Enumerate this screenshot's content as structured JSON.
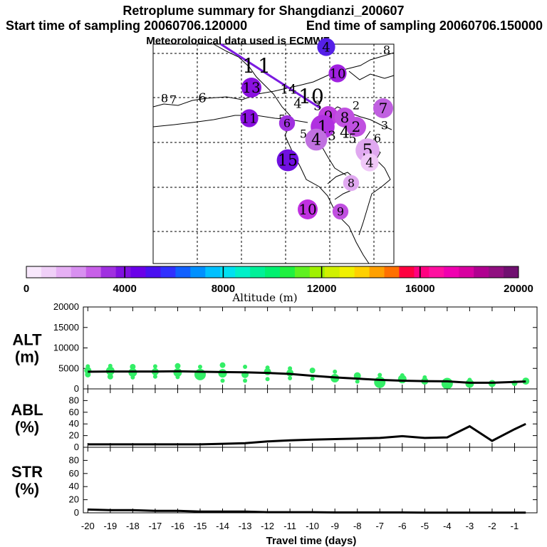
{
  "header": {
    "title": "Retroplume summary for Shangdianzi_200607",
    "start": "Start time of sampling 20060706.120000",
    "end": "End time of sampling 20060706.150000",
    "met": "Meteorological data used is ECMWF"
  },
  "map": {
    "labels": [
      {
        "t": "1",
        "x": 349,
        "y": 92,
        "s": 28,
        "dot": false
      },
      {
        "t": "1",
        "x": 371,
        "y": 92,
        "s": 28,
        "dot": false
      },
      {
        "t": "4",
        "x": 458,
        "y": 66,
        "s": 18,
        "dot": true,
        "c": "#5520e8"
      },
      {
        "t": "8",
        "x": 543,
        "y": 70,
        "s": 16,
        "dot": false
      },
      {
        "t": "10",
        "x": 474,
        "y": 103,
        "s": 18,
        "dot": true,
        "c": "#a020e0"
      },
      {
        "t": "13",
        "x": 353,
        "y": 123,
        "s": 20,
        "dot": true,
        "c": "#8a10e0"
      },
      {
        "t": "14",
        "x": 405,
        "y": 125,
        "s": 18,
        "dot": false
      },
      {
        "t": "10",
        "x": 437,
        "y": 135,
        "s": 28,
        "dot": false
      },
      {
        "t": "8",
        "x": 231,
        "y": 138,
        "s": 16,
        "dot": false
      },
      {
        "t": "7",
        "x": 243,
        "y": 140,
        "s": 16,
        "dot": false
      },
      {
        "t": "6",
        "x": 284,
        "y": 137,
        "s": 18,
        "dot": false
      },
      {
        "t": "4",
        "x": 418,
        "y": 145,
        "s": 18,
        "dot": false
      },
      {
        "t": "3",
        "x": 446,
        "y": 148,
        "s": 18,
        "dot": false
      },
      {
        "t": "2",
        "x": 500,
        "y": 148,
        "s": 16,
        "dot": false
      },
      {
        "t": "7",
        "x": 538,
        "y": 152,
        "s": 20,
        "dot": true,
        "c": "#c060e0"
      },
      {
        "t": "11",
        "x": 350,
        "y": 166,
        "s": 18,
        "dot": true,
        "c": "#8a10e0"
      },
      {
        "t": "5",
        "x": 396,
        "y": 167,
        "s": 16,
        "dot": false
      },
      {
        "t": "6",
        "x": 403,
        "y": 173,
        "s": 16,
        "dot": true,
        "c": "#a030e0"
      },
      {
        "t": "9",
        "x": 461,
        "y": 163,
        "s": 20,
        "dot": true,
        "c": "#c040e0"
      },
      {
        "t": "8",
        "x": 484,
        "y": 165,
        "s": 20,
        "dot": true,
        "c": "#c050e0"
      },
      {
        "t": "1",
        "x": 453,
        "y": 178,
        "s": 24,
        "dot": true,
        "c": "#b030e0"
      },
      {
        "t": "2",
        "x": 500,
        "y": 178,
        "s": 20,
        "dot": true,
        "c": "#c050e0"
      },
      {
        "t": "3",
        "x": 540,
        "y": 176,
        "s": 16,
        "dot": false
      },
      {
        "t": "5",
        "x": 426,
        "y": 188,
        "s": 16,
        "dot": false
      },
      {
        "t": "4",
        "x": 444,
        "y": 196,
        "s": 22,
        "dot": true,
        "c": "#c070e0"
      },
      {
        "t": "3",
        "x": 466,
        "y": 190,
        "s": 18,
        "dot": false
      },
      {
        "t": "4",
        "x": 484,
        "y": 186,
        "s": 22,
        "dot": false
      },
      {
        "t": "5",
        "x": 495,
        "y": 194,
        "s": 18,
        "dot": false
      },
      {
        "t": "6",
        "x": 530,
        "y": 194,
        "s": 16,
        "dot": false
      },
      {
        "t": "5",
        "x": 516,
        "y": 211,
        "s": 24,
        "dot": true,
        "c": "#e0a8f0"
      },
      {
        "t": "15",
        "x": 404,
        "y": 225,
        "s": 22,
        "dot": true,
        "c": "#7010e0"
      },
      {
        "t": "4",
        "x": 519,
        "y": 228,
        "s": 18,
        "dot": true,
        "c": "#f0c8f8"
      },
      {
        "t": "8",
        "x": 493,
        "y": 257,
        "s": 16,
        "dot": true,
        "c": "#e0a8f0"
      },
      {
        "t": "10",
        "x": 432,
        "y": 294,
        "s": 20,
        "dot": true,
        "c": "#c030e0"
      },
      {
        "t": "9",
        "x": 478,
        "y": 297,
        "s": 16,
        "dot": true,
        "c": "#c050e0"
      }
    ]
  },
  "colorbar": {
    "label": "Altitude (m)",
    "ticks": [
      "0",
      "4000",
      "8000",
      "12000",
      "16000",
      "20000"
    ],
    "colors": [
      "#f8e8fc",
      "#f0d0f8",
      "#e6b0f4",
      "#d890f0",
      "#c860e8",
      "#a030e0",
      "#8010e0",
      "#6a00e8",
      "#4a10f0",
      "#3030ff",
      "#1060ff",
      "#0090ff",
      "#00c0ff",
      "#00e0f0",
      "#00f0c8",
      "#00f098",
      "#00f070",
      "#20f040",
      "#60f020",
      "#a0f000",
      "#d0f000",
      "#f0f000",
      "#ffd000",
      "#ffa000",
      "#ff7000",
      "#ff0040",
      "#ff0080",
      "#ff10a0",
      "#f000b0",
      "#d800a0",
      "#b00090",
      "#901080",
      "#701070"
    ]
  },
  "chart_data": {
    "type": "line",
    "xlabel": "Travel time (days)",
    "xlim": [
      -20.2,
      0
    ],
    "x_ticks": [
      "-20",
      "-19",
      "-18",
      "-17",
      "-16",
      "-15",
      "-14",
      "-13",
      "-12",
      "-11",
      "-10",
      "-9",
      "-8",
      "-7",
      "-6",
      "-5",
      "-4",
      "-3",
      "-2",
      "-1"
    ],
    "panels": [
      {
        "name": "ALT (m)",
        "label1": "ALT",
        "label2": "(m)",
        "ylim": [
          0,
          20000
        ],
        "y_ticks": [
          "0",
          "5000",
          "10000",
          "15000",
          "20000"
        ],
        "series": {
          "x": [
            -20,
            -19,
            -18,
            -17,
            -16,
            -15,
            -14,
            -13,
            -12,
            -11,
            -10,
            -9,
            -8,
            -7,
            -6,
            -5,
            -4,
            -3,
            -2,
            -1,
            -0.5
          ],
          "y": [
            4200,
            4250,
            4250,
            4250,
            4300,
            4200,
            4100,
            4050,
            3900,
            3650,
            3200,
            2800,
            2500,
            2200,
            2000,
            1900,
            1850,
            1500,
            1500,
            1700,
            1800
          ]
        },
        "scatter_color": "#33ee66",
        "scatter": [
          {
            "x": -20,
            "y": 4500,
            "r": 5
          },
          {
            "x": -20,
            "y": 3500,
            "r": 4
          },
          {
            "x": -20,
            "y": 5500,
            "r": 3
          },
          {
            "x": -19,
            "y": 4400,
            "r": 6
          },
          {
            "x": -19,
            "y": 3000,
            "r": 4
          },
          {
            "x": -19,
            "y": 5600,
            "r": 3
          },
          {
            "x": -18,
            "y": 4000,
            "r": 6
          },
          {
            "x": -18,
            "y": 5400,
            "r": 4
          },
          {
            "x": -18,
            "y": 2800,
            "r": 3
          },
          {
            "x": -17,
            "y": 4200,
            "r": 5
          },
          {
            "x": -17,
            "y": 5500,
            "r": 3
          },
          {
            "x": -17,
            "y": 3000,
            "r": 3
          },
          {
            "x": -16,
            "y": 4000,
            "r": 6
          },
          {
            "x": -16,
            "y": 5600,
            "r": 4
          },
          {
            "x": -16,
            "y": 2900,
            "r": 3
          },
          {
            "x": -15,
            "y": 3500,
            "r": 8
          },
          {
            "x": -15,
            "y": 5400,
            "r": 3
          },
          {
            "x": -14,
            "y": 3800,
            "r": 6
          },
          {
            "x": -14,
            "y": 5800,
            "r": 4
          },
          {
            "x": -14,
            "y": 2000,
            "r": 3
          },
          {
            "x": -13,
            "y": 3500,
            "r": 5
          },
          {
            "x": -13,
            "y": 5400,
            "r": 3
          },
          {
            "x": -13,
            "y": 2000,
            "r": 3
          },
          {
            "x": -12,
            "y": 4200,
            "r": 5
          },
          {
            "x": -12,
            "y": 2400,
            "r": 3
          },
          {
            "x": -12,
            "y": 5200,
            "r": 3
          },
          {
            "x": -11,
            "y": 3900,
            "r": 5
          },
          {
            "x": -11,
            "y": 2600,
            "r": 3
          },
          {
            "x": -11,
            "y": 5000,
            "r": 3
          },
          {
            "x": -10,
            "y": 4500,
            "r": 4
          },
          {
            "x": -10,
            "y": 2500,
            "r": 3
          },
          {
            "x": -9,
            "y": 2600,
            "r": 6
          },
          {
            "x": -9,
            "y": 4200,
            "r": 3
          },
          {
            "x": -8,
            "y": 3200,
            "r": 5
          },
          {
            "x": -8,
            "y": 1800,
            "r": 3
          },
          {
            "x": -7,
            "y": 1600,
            "r": 8
          },
          {
            "x": -7,
            "y": 3400,
            "r": 3
          },
          {
            "x": -6,
            "y": 2400,
            "r": 6
          },
          {
            "x": -6,
            "y": 3300,
            "r": 3
          },
          {
            "x": -5,
            "y": 1900,
            "r": 5
          },
          {
            "x": -5,
            "y": 2800,
            "r": 3
          },
          {
            "x": -4,
            "y": 1300,
            "r": 8
          },
          {
            "x": -3,
            "y": 1300,
            "r": 6
          },
          {
            "x": -3,
            "y": 2200,
            "r": 3
          },
          {
            "x": -2,
            "y": 1300,
            "r": 5
          },
          {
            "x": -1,
            "y": 1400,
            "r": 4
          },
          {
            "x": -0.5,
            "y": 1900,
            "r": 5
          }
        ]
      },
      {
        "name": "ABL (%)",
        "label1": "ABL",
        "label2": "(%)",
        "ylim": [
          0,
          100
        ],
        "y_ticks": [
          "0",
          "20",
          "40",
          "60",
          "80"
        ],
        "series": {
          "x": [
            -20,
            -19,
            -18,
            -17,
            -16,
            -15,
            -14,
            -13,
            -12,
            -11,
            -10,
            -9,
            -8,
            -7,
            -6,
            -5,
            -4,
            -3,
            -2,
            -1,
            -0.5
          ],
          "y": [
            5,
            5,
            5,
            5,
            5,
            5,
            6,
            7,
            10,
            12,
            13,
            14,
            15,
            16,
            19,
            16,
            17,
            36,
            11,
            31,
            40
          ]
        }
      },
      {
        "name": "STR (%)",
        "label1": "STR",
        "label2": "(%)",
        "ylim": [
          0,
          100
        ],
        "y_ticks": [
          "0",
          "20",
          "40",
          "60",
          "80"
        ],
        "series": {
          "x": [
            -20,
            -19,
            -18,
            -17,
            -16,
            -15,
            -14,
            -13,
            -12,
            -11,
            -10,
            -9,
            -8,
            -7,
            -6,
            -5,
            -4,
            -3,
            -2,
            -1,
            -0.5
          ],
          "y": [
            5,
            4,
            4,
            3,
            3,
            2,
            2,
            2,
            1,
            1,
            1,
            0.5,
            0.5,
            0.5,
            0.5,
            0.3,
            0.3,
            0.3,
            0.2,
            0.2,
            0.2
          ]
        }
      }
    ]
  }
}
